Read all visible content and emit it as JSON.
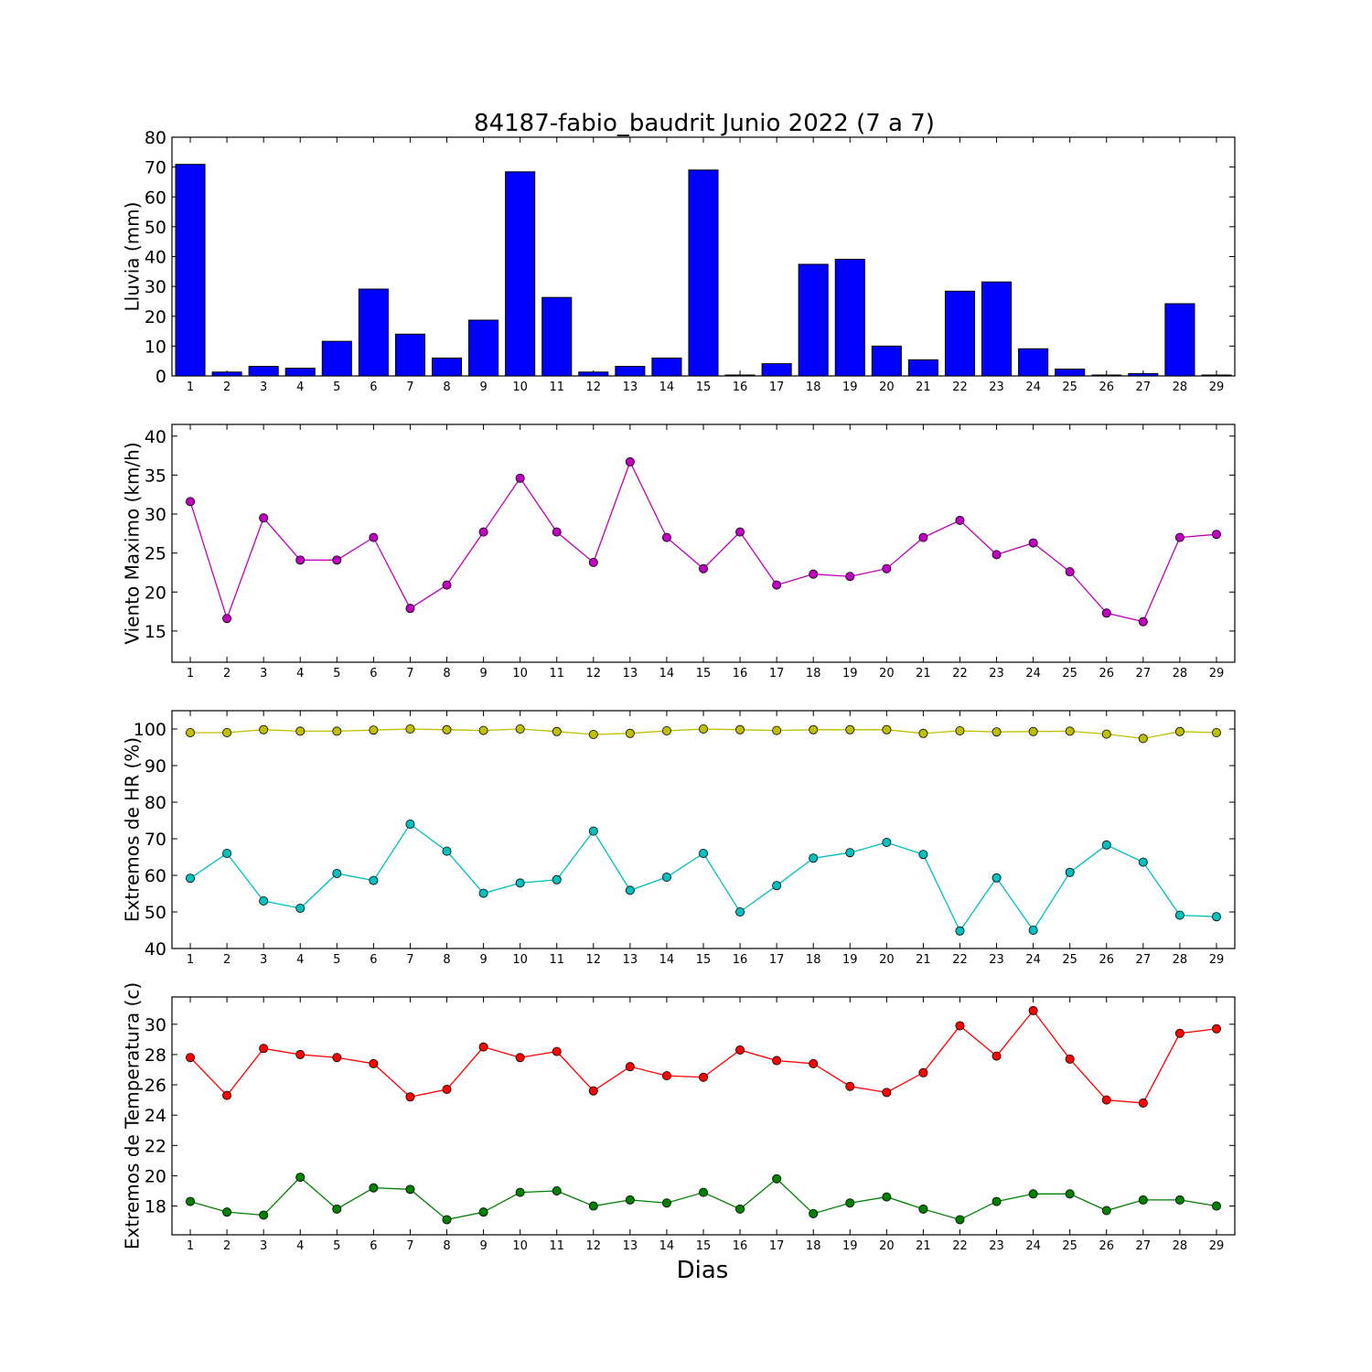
{
  "figure": {
    "title": "84187-fabio_baudrit Junio 2022  (7 a 7)",
    "xlabel": "Dias"
  },
  "chart_data": [
    {
      "type": "bar",
      "ylabel": "Lluvia (mm)",
      "ylim": [
        0,
        80
      ],
      "yticks": [
        0,
        10,
        20,
        30,
        40,
        50,
        60,
        70,
        80
      ],
      "categories": [
        "1",
        "2",
        "3",
        "4",
        "5",
        "6",
        "7",
        "8",
        "9",
        "10",
        "11",
        "12",
        "13",
        "14",
        "15",
        "16",
        "17",
        "18",
        "19",
        "20",
        "21",
        "22",
        "23",
        "24",
        "25",
        "26",
        "27",
        "28",
        "29"
      ],
      "series": [
        {
          "color": "#0000ff",
          "values": [
            70.9,
            1.3,
            3.2,
            2.6,
            11.6,
            29.1,
            14.0,
            6.0,
            18.7,
            68.4,
            26.3,
            1.3,
            3.2,
            6.0,
            69.0,
            0.3,
            4.1,
            37.4,
            39.1,
            10.0,
            5.4,
            28.4,
            31.5,
            9.1,
            2.3,
            0.3,
            0.8,
            24.2,
            0.3
          ]
        }
      ],
      "grid": false
    },
    {
      "type": "line",
      "ylabel": "Viento Maximo (km/h)",
      "ylim": [
        11,
        41.5
      ],
      "yticks": [
        15,
        20,
        25,
        30,
        35,
        40
      ],
      "categories": [
        "1",
        "2",
        "3",
        "4",
        "5",
        "6",
        "7",
        "8",
        "9",
        "10",
        "11",
        "12",
        "13",
        "14",
        "15",
        "16",
        "17",
        "18",
        "19",
        "20",
        "21",
        "22",
        "23",
        "24",
        "25",
        "26",
        "27",
        "28",
        "29"
      ],
      "series": [
        {
          "color": "#bf00bf",
          "values": [
            31.6,
            16.6,
            29.5,
            24.1,
            24.1,
            27.0,
            17.9,
            20.9,
            27.7,
            34.6,
            27.7,
            23.8,
            36.7,
            27.0,
            23.0,
            27.7,
            20.9,
            22.3,
            22.0,
            23.0,
            27.0,
            29.2,
            24.8,
            26.3,
            22.6,
            17.3,
            16.2,
            27.0,
            27.4
          ]
        }
      ],
      "grid": false
    },
    {
      "type": "line",
      "ylabel": "Extremos de HR (%)",
      "ylim": [
        40,
        105
      ],
      "yticks": [
        40,
        50,
        60,
        70,
        80,
        90,
        100
      ],
      "categories": [
        "1",
        "2",
        "3",
        "4",
        "5",
        "6",
        "7",
        "8",
        "9",
        "10",
        "11",
        "12",
        "13",
        "14",
        "15",
        "16",
        "17",
        "18",
        "19",
        "20",
        "21",
        "22",
        "23",
        "24",
        "25",
        "26",
        "27",
        "28",
        "29"
      ],
      "series": [
        {
          "color": "#bfbf00",
          "values": [
            99.0,
            99.0,
            99.8,
            99.4,
            99.4,
            99.7,
            100.0,
            99.8,
            99.6,
            100.0,
            99.3,
            98.5,
            98.8,
            99.5,
            100.0,
            99.8,
            99.6,
            99.8,
            99.8,
            99.8,
            98.8,
            99.5,
            99.2,
            99.3,
            99.4,
            98.6,
            97.4,
            99.3,
            99.0
          ]
        },
        {
          "color": "#00bfbf",
          "values": [
            59.2,
            66.0,
            53.0,
            51.0,
            60.5,
            58.6,
            74.0,
            66.6,
            55.1,
            57.9,
            58.8,
            72.1,
            55.9,
            59.5,
            66.0,
            50.0,
            57.2,
            64.7,
            66.2,
            69.0,
            65.7,
            44.8,
            59.3,
            45.0,
            60.8,
            68.3,
            63.6,
            49.1,
            48.7
          ]
        }
      ],
      "grid": false
    },
    {
      "type": "line",
      "ylabel": "Extremos de Temperatura (c)",
      "ylim": [
        16.1,
        31.8
      ],
      "yticks": [
        18,
        20,
        22,
        24,
        26,
        28,
        30
      ],
      "categories": [
        "1",
        "2",
        "3",
        "4",
        "5",
        "6",
        "7",
        "8",
        "9",
        "10",
        "11",
        "12",
        "13",
        "14",
        "15",
        "16",
        "17",
        "18",
        "19",
        "20",
        "21",
        "22",
        "23",
        "24",
        "25",
        "26",
        "27",
        "28",
        "29"
      ],
      "series": [
        {
          "color": "#ff0000",
          "values": [
            27.8,
            25.3,
            28.4,
            28.0,
            27.8,
            27.4,
            25.2,
            25.7,
            28.5,
            27.8,
            28.2,
            25.6,
            27.2,
            26.6,
            26.5,
            28.3,
            27.6,
            27.4,
            25.9,
            25.5,
            26.8,
            29.9,
            27.9,
            30.9,
            27.7,
            25.0,
            24.8,
            29.4,
            29.7
          ]
        },
        {
          "color": "#008000",
          "values": [
            18.3,
            17.6,
            17.4,
            19.9,
            17.8,
            19.2,
            19.1,
            17.1,
            17.6,
            18.9,
            19.0,
            18.0,
            18.4,
            18.2,
            18.9,
            17.8,
            19.8,
            17.5,
            18.2,
            18.6,
            17.8,
            17.1,
            18.3,
            18.8,
            18.8,
            17.7,
            18.4,
            18.4,
            18.0
          ]
        }
      ],
      "grid": false
    }
  ]
}
